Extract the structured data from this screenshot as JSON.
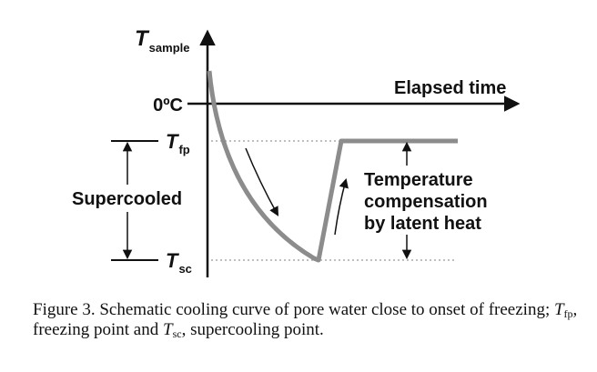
{
  "diagram": {
    "y_axis_symbol": "T",
    "y_axis_subscript": "sample",
    "zero_label": "0ºC",
    "x_axis_label": "Elapsed time",
    "tfp_symbol": "T",
    "tfp_subscript": "fp",
    "tsc_symbol": "T",
    "tsc_subscript": "sc",
    "supercooled_label": "Supercooled",
    "compensation_line1": "Temperature",
    "compensation_line2": "compensation",
    "compensation_line3": "by latent heat",
    "curve_color": "#8c8c8c"
  },
  "caption": {
    "prefix": "Figure 3.  Schematic cooling curve of pore water close to onset of freezing; ",
    "tfp_symbol": "T",
    "tfp_subscript": "fp",
    "middle": ", freezing point and ",
    "tsc_symbol": "T",
    "tsc_subscript": "sc",
    "suffix": ", supercooling point."
  }
}
